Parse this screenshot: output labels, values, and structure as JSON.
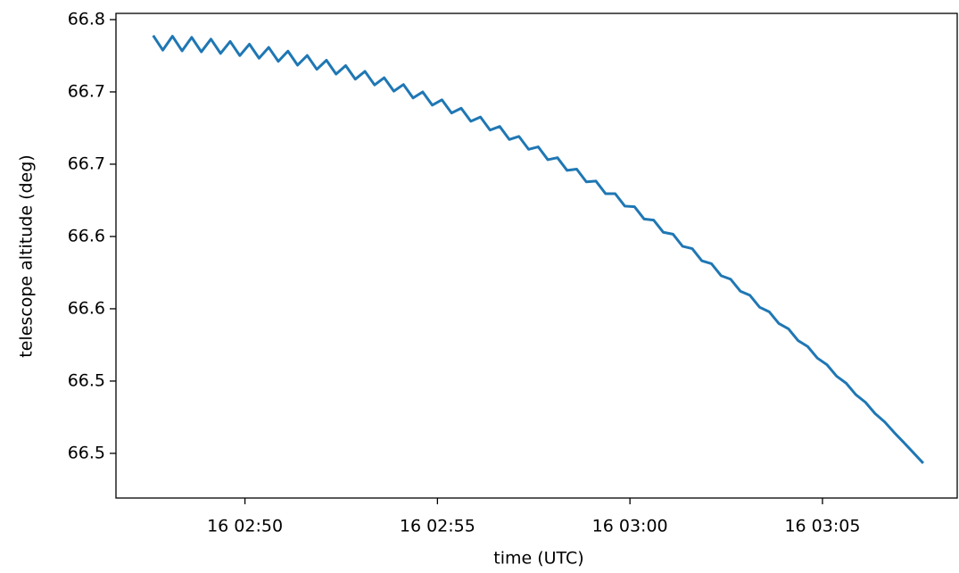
{
  "chart_data": {
    "type": "line",
    "xlabel": "time (UTC)",
    "ylabel": "telescope altitude (deg)",
    "x": [
      "16 02:47:37",
      "16 02:47:52",
      "16 02:48:07",
      "16 02:48:22",
      "16 02:48:37",
      "16 02:48:52",
      "16 02:49:07",
      "16 02:49:22",
      "16 02:49:37",
      "16 02:49:52",
      "16 02:50:07",
      "16 02:50:22",
      "16 02:50:37",
      "16 02:50:52",
      "16 02:51:07",
      "16 02:51:22",
      "16 02:51:37",
      "16 02:51:52",
      "16 02:52:07",
      "16 02:52:22",
      "16 02:52:37",
      "16 02:52:52",
      "16 02:53:07",
      "16 02:53:22",
      "16 02:53:37",
      "16 02:53:52",
      "16 02:54:07",
      "16 02:54:22",
      "16 02:54:37",
      "16 02:54:52",
      "16 02:55:07",
      "16 02:55:22",
      "16 02:55:37",
      "16 02:55:52",
      "16 02:56:07",
      "16 02:56:22",
      "16 02:56:37",
      "16 02:56:52",
      "16 02:57:07",
      "16 02:57:22",
      "16 02:57:37",
      "16 02:57:52",
      "16 02:58:07",
      "16 02:58:22",
      "16 02:58:37",
      "16 02:58:52",
      "16 02:59:07",
      "16 02:59:22",
      "16 02:59:37",
      "16 02:59:52",
      "16 03:00:07",
      "16 03:00:22",
      "16 03:00:37",
      "16 03:00:52",
      "16 03:01:07",
      "16 03:01:22",
      "16 03:01:37",
      "16 03:01:52",
      "16 03:02:07",
      "16 03:02:22",
      "16 03:02:37",
      "16 03:02:52",
      "16 03:03:07",
      "16 03:03:22",
      "16 03:03:37",
      "16 03:03:52",
      "16 03:04:07",
      "16 03:04:22",
      "16 03:04:37",
      "16 03:04:52",
      "16 03:05:07",
      "16 03:05:22",
      "16 03:05:37",
      "16 03:05:52",
      "16 03:06:07",
      "16 03:06:22",
      "16 03:06:37",
      "16 03:06:52",
      "16 03:07:07",
      "16 03:07:22",
      "16 03:07:37"
    ],
    "series": [
      {
        "color": "#1f77b4",
        "values": [
          66.764,
          66.7539,
          66.7635,
          66.7534,
          66.7627,
          66.7527,
          66.7615,
          66.7516,
          66.7599,
          66.7501,
          66.758,
          66.7483,
          66.7558,
          66.7461,
          66.7532,
          66.7435,
          66.7502,
          66.7406,
          66.7469,
          66.7373,
          66.7432,
          66.7338,
          66.7392,
          66.7298,
          66.7348,
          66.7255,
          66.7301,
          66.7208,
          66.725,
          66.7158,
          66.7195,
          66.7104,
          66.7137,
          66.7047,
          66.7076,
          66.6986,
          66.7011,
          66.6921,
          66.6942,
          66.6853,
          66.687,
          66.6781,
          66.6795,
          66.6707,
          66.6716,
          66.6628,
          66.6633,
          66.6546,
          66.6546,
          66.646,
          66.6456,
          66.6371,
          66.6363,
          66.6279,
          66.6266,
          66.6182,
          66.6166,
          66.6082,
          66.6062,
          66.5979,
          66.5954,
          66.5872,
          66.5843,
          66.5761,
          66.5729,
          66.5648,
          66.5611,
          66.553,
          66.5489,
          66.5409,
          66.5363,
          66.5284,
          66.5235,
          66.5156,
          66.5103,
          66.5025,
          66.4967,
          66.4893,
          66.4824,
          66.4753,
          66.4682
        ]
      }
    ],
    "xlim": [
      "16 02:46:39",
      "16 03:08:30"
    ],
    "xticks": [
      "16 02:50",
      "16 02:55",
      "16 03:00",
      "16 03:05"
    ],
    "ylim": [
      66.4441,
      66.7793
    ],
    "yticks": [
      {
        "value": 66.775,
        "label": "66.8"
      },
      {
        "value": 66.725,
        "label": "66.7"
      },
      {
        "value": 66.675,
        "label": "66.7"
      },
      {
        "value": 66.625,
        "label": "66.6"
      },
      {
        "value": 66.575,
        "label": "66.6"
      },
      {
        "value": 66.525,
        "label": "66.5"
      },
      {
        "value": 66.475,
        "label": "66.5"
      }
    ],
    "grid": false
  }
}
